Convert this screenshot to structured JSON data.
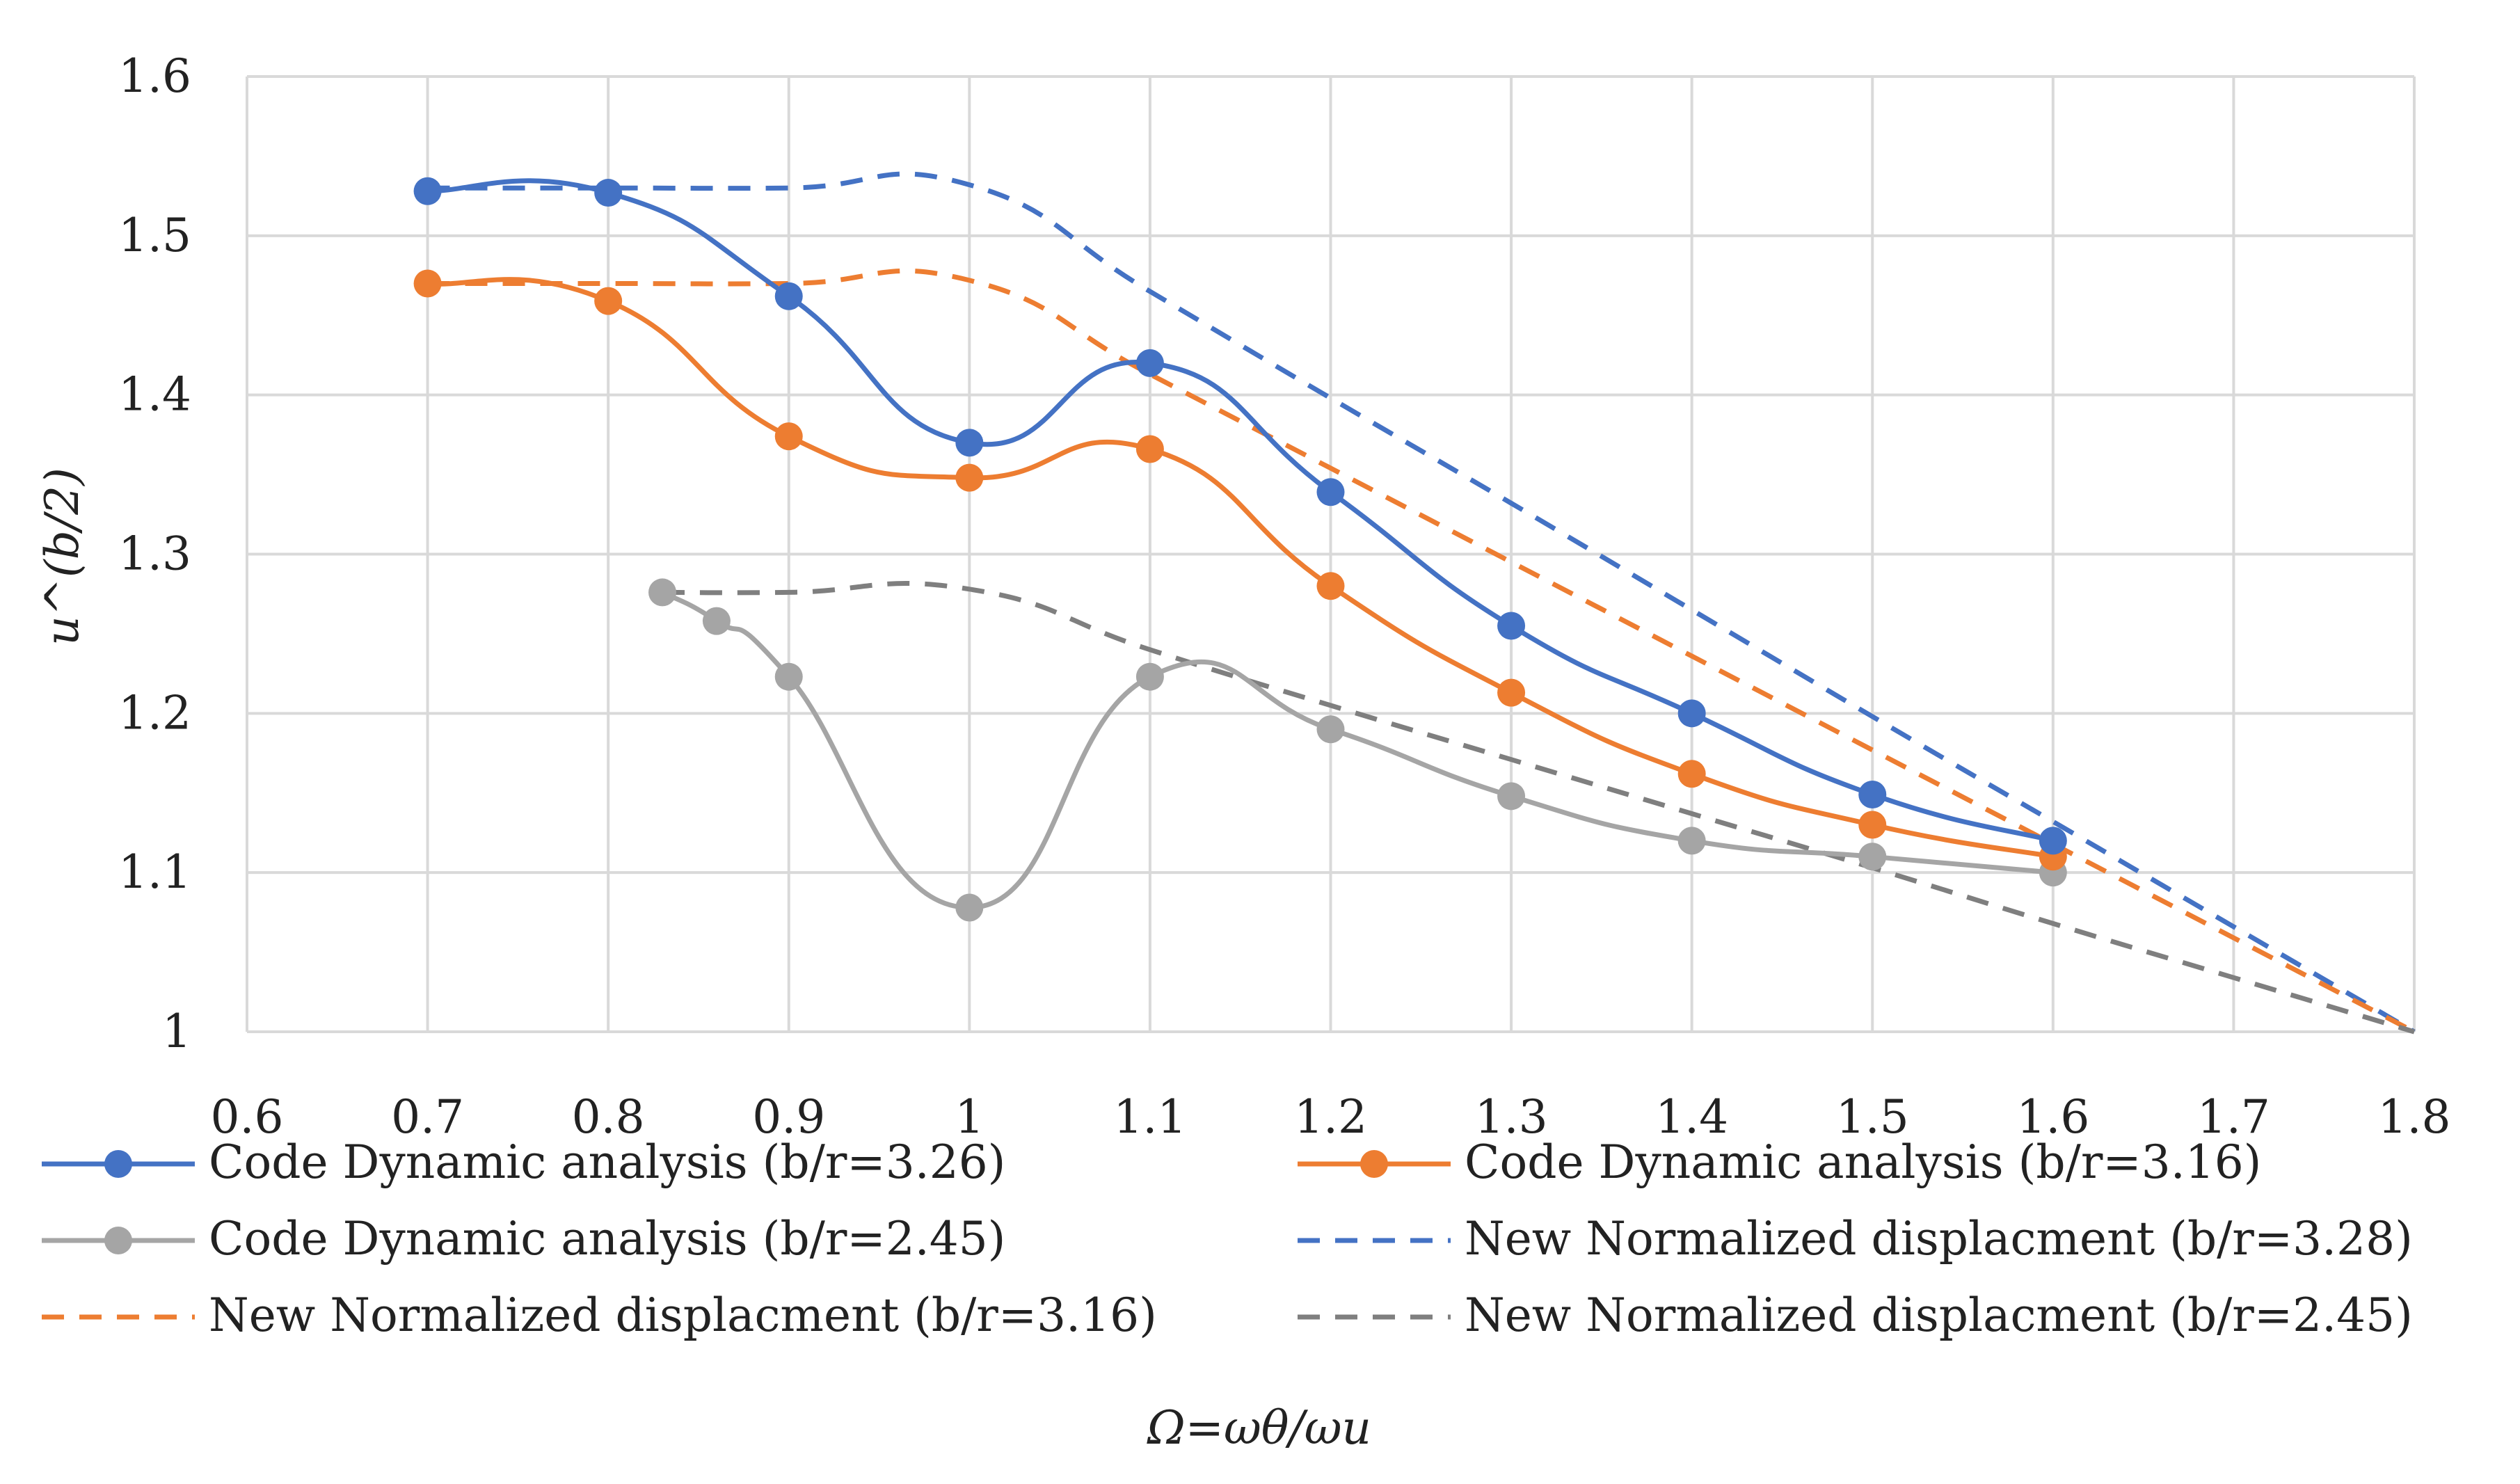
{
  "chart_data": {
    "type": "line",
    "title": "",
    "xlabel": "Ω=ωθ/ωu",
    "ylabel": "u^(b/2)",
    "xlim": [
      0.6,
      1.8
    ],
    "ylim": [
      1.0,
      1.6
    ],
    "x_ticks": [
      "0.6",
      "0.7",
      "0.8",
      "0.9",
      "1",
      "1.1",
      "1.2",
      "1.3",
      "1.4",
      "1.5",
      "1.6",
      "1.7",
      "1.8"
    ],
    "y_ticks": [
      "1",
      "1.1",
      "1.2",
      "1.3",
      "1.4",
      "1.5",
      "1.6"
    ],
    "grid": true,
    "legend_position": "bottom",
    "series": [
      {
        "name": "Code Dynamic analysis (b/r=3.26)",
        "color": "#4472C4",
        "style": "solid",
        "markers": true,
        "x": [
          0.7,
          0.8,
          0.9,
          1.0,
          1.1,
          1.2,
          1.3,
          1.4,
          1.5,
          1.6
        ],
        "y": [
          1.528,
          1.527,
          1.462,
          1.37,
          1.42,
          1.339,
          1.255,
          1.2,
          1.149,
          1.12
        ]
      },
      {
        "name": "Code Dynamic analysis (b/r=3.16)",
        "color": "#ED7D31",
        "style": "solid",
        "markers": true,
        "x": [
          0.7,
          0.8,
          0.9,
          1.0,
          1.1,
          1.2,
          1.3,
          1.4,
          1.5,
          1.6
        ],
        "y": [
          1.47,
          1.459,
          1.374,
          1.348,
          1.366,
          1.28,
          1.213,
          1.162,
          1.13,
          1.11
        ]
      },
      {
        "name": "Code Dynamic analysis (b/r=2.45)",
        "color": "#A5A5A5",
        "style": "solid",
        "markers": true,
        "x": [
          0.83,
          0.86,
          0.9,
          1.0,
          1.1,
          1.2,
          1.3,
          1.4,
          1.5,
          1.6
        ],
        "y": [
          1.276,
          1.258,
          1.223,
          1.078,
          1.223,
          1.19,
          1.148,
          1.12,
          1.11,
          1.1
        ]
      },
      {
        "name": "New Normalized displacment (b/r=3.28)",
        "color": "#4472C4",
        "style": "dashed",
        "markers": false,
        "x": [
          0.7,
          0.8,
          0.9,
          1.0,
          1.1,
          1.2,
          1.3,
          1.4,
          1.5,
          1.6,
          1.7,
          1.8
        ],
        "y": [
          1.53,
          1.53,
          1.53,
          1.532,
          1.465,
          1.398,
          1.332,
          1.265,
          1.198,
          1.132,
          1.066,
          1.0
        ]
      },
      {
        "name": "New Normalized displacment (b/r=3.16)",
        "color": "#ED7D31",
        "style": "dashed",
        "markers": false,
        "x": [
          0.7,
          0.8,
          0.9,
          1.0,
          1.1,
          1.2,
          1.3,
          1.4,
          1.5,
          1.6,
          1.7,
          1.8
        ],
        "y": [
          1.47,
          1.47,
          1.47,
          1.472,
          1.413,
          1.354,
          1.295,
          1.236,
          1.177,
          1.118,
          1.059,
          1.0
        ]
      },
      {
        "name": "New Normalized displacment (b/r=2.45)",
        "color": "#7F7F7F",
        "style": "dashed",
        "markers": false,
        "x": [
          0.83,
          0.9,
          1.0,
          1.1,
          1.2,
          1.3,
          1.4,
          1.5,
          1.6,
          1.7,
          1.8
        ],
        "y": [
          1.276,
          1.276,
          1.278,
          1.24,
          1.205,
          1.171,
          1.137,
          1.103,
          1.068,
          1.034,
          1.0
        ]
      }
    ]
  }
}
